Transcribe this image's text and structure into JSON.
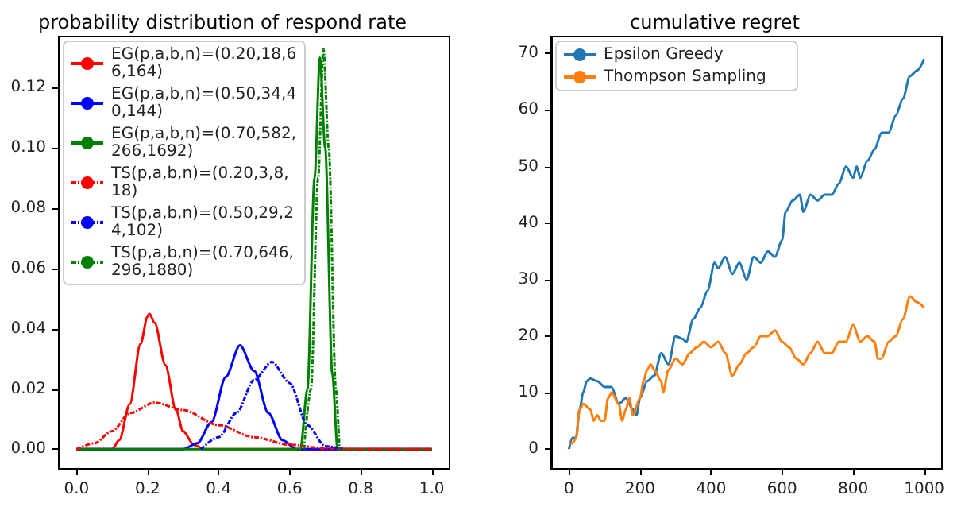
{
  "chart_data": [
    {
      "type": "line",
      "title": "probability distribution of respond rate",
      "legend": "top left",
      "grid": false,
      "marker": "none",
      "xlim": [
        -0.05,
        1.05
      ],
      "ylim": [
        -0.0065,
        0.137
      ],
      "xticks": [
        {
          "value": 0,
          "label": "0.0"
        },
        {
          "value": 0.2,
          "label": "0.2"
        },
        {
          "value": 0.4,
          "label": "0.4"
        },
        {
          "value": 0.6,
          "label": "0.6"
        },
        {
          "value": 0.8,
          "label": "0.8"
        },
        {
          "value": 1,
          "label": "1.0"
        }
      ],
      "yticks": [
        {
          "value": 0,
          "label": "0.00"
        },
        {
          "value": 0.02,
          "label": "0.02"
        },
        {
          "value": 0.04,
          "label": "0.04"
        },
        {
          "value": 0.06,
          "label": "0.06"
        },
        {
          "value": 0.08,
          "label": "0.08"
        },
        {
          "value": 0.1,
          "label": "0.10"
        },
        {
          "value": 0.12,
          "label": "0.12"
        }
      ],
      "series": [
        {
          "name": "EG(p,a,b,n)=(0.20,18,66,164)",
          "color": "#ff0000",
          "line_style": "solid",
          "x": [
            0,
            0.1,
            0.12,
            0.15,
            0.18,
            0.2,
            0.205,
            0.22,
            0.25,
            0.28,
            0.3,
            0.33,
            0.36,
            0.6,
            1
          ],
          "values": [
            0,
            0,
            0.003,
            0.015,
            0.035,
            0.044,
            0.045,
            0.042,
            0.028,
            0.013,
            0.006,
            0.0015,
            0,
            0,
            0
          ]
        },
        {
          "name": "EG(p,a,b,n)=(0.50,34,40,144)",
          "color": "#0000ff",
          "line_style": "solid",
          "x": [
            0,
            0.3,
            0.34,
            0.38,
            0.42,
            0.46,
            0.5,
            0.54,
            0.58,
            0.62,
            1
          ],
          "values": [
            0,
            0,
            0.002,
            0.009,
            0.024,
            0.0345,
            0.026,
            0.012,
            0.003,
            0,
            0
          ]
        },
        {
          "name": "EG(p,a,b,n)=(0.70,582,266,1692)",
          "color": "#008000",
          "line_style": "solid",
          "x": [
            0,
            0.63,
            0.65,
            0.67,
            0.685,
            0.7,
            0.72,
            0.735,
            1
          ],
          "values": [
            0,
            0,
            0.02,
            0.09,
            0.13,
            0.1,
            0.025,
            0,
            0
          ]
        },
        {
          "name": "TS(p,a,b,n)=(0.20,3,8,18)",
          "color": "#ff0000",
          "line_style": "dashdot",
          "x": [
            0,
            0.05,
            0.1,
            0.15,
            0.22,
            0.3,
            0.4,
            0.5,
            0.6,
            0.7,
            0.8,
            1
          ],
          "values": [
            0,
            0.002,
            0.006,
            0.012,
            0.0155,
            0.013,
            0.008,
            0.004,
            0.0015,
            0.0003,
            0,
            0
          ]
        },
        {
          "name": "TS(p,a,b,n)=(0.50,29,24,102)",
          "color": "#0000ff",
          "line_style": "dashdot",
          "x": [
            0.35,
            0.4,
            0.45,
            0.5,
            0.55,
            0.6,
            0.65,
            0.7,
            0.75
          ],
          "values": [
            0,
            0.004,
            0.012,
            0.023,
            0.029,
            0.022,
            0.008,
            0.001,
            0
          ]
        },
        {
          "name": "TS(p,a,b,n)=(0.70,646,296,1880)",
          "color": "#008000",
          "line_style": "dashdot",
          "x": [
            0.64,
            0.66,
            0.68,
            0.695,
            0.71,
            0.73,
            0.74
          ],
          "values": [
            0,
            0.02,
            0.09,
            0.133,
            0.1,
            0.02,
            0
          ]
        }
      ]
    },
    {
      "type": "line",
      "title": "cumulative regret",
      "legend": "top left",
      "grid": false,
      "marker": "none",
      "xlim": [
        -50,
        1050
      ],
      "ylim": [
        -3.5,
        73
      ],
      "xticks": [
        0,
        200,
        400,
        600,
        800,
        1000
      ],
      "yticks": [
        0,
        10,
        20,
        30,
        40,
        50,
        60,
        70
      ],
      "series": [
        {
          "name": "Epsilon Greedy",
          "color": "#1f77b4",
          "line_style": "solid",
          "x": [
            0,
            10,
            20,
            30,
            40,
            50,
            60,
            80,
            100,
            120,
            140,
            160,
            180,
            190,
            200,
            220,
            240,
            260,
            280,
            300,
            320,
            330,
            350,
            370,
            390,
            410,
            420,
            440,
            460,
            480,
            500,
            520,
            540,
            560,
            580,
            600,
            610,
            630,
            650,
            660,
            680,
            700,
            720,
            740,
            760,
            780,
            800,
            810,
            820,
            840,
            860,
            880,
            900,
            920,
            940,
            960,
            980,
            1000
          ],
          "values": [
            0,
            2,
            2,
            7,
            10,
            12,
            12.5,
            12,
            11,
            11,
            8,
            9,
            7,
            6,
            9,
            12,
            13,
            17,
            15,
            20,
            19.5,
            19,
            23,
            25,
            28,
            33,
            32,
            34,
            31,
            33,
            30,
            34,
            33,
            35,
            34,
            37,
            42,
            44,
            45,
            42,
            45,
            44,
            45,
            45,
            47,
            50,
            48,
            50,
            48,
            51,
            53,
            56,
            56,
            59,
            62,
            66,
            67,
            69
          ]
        },
        {
          "name": "Thompson Sampling",
          "color": "#ff7f0e",
          "line_style": "solid",
          "x": [
            0,
            10,
            20,
            30,
            40,
            60,
            70,
            80,
            90,
            100,
            110,
            120,
            140,
            150,
            160,
            170,
            180,
            200,
            210,
            220,
            230,
            240,
            260,
            265,
            280,
            300,
            320,
            340,
            360,
            380,
            400,
            420,
            440,
            460,
            480,
            500,
            520,
            540,
            560,
            580,
            600,
            620,
            640,
            660,
            680,
            700,
            720,
            740,
            760,
            780,
            800,
            820,
            840,
            860,
            870,
            880,
            900,
            920,
            940,
            960,
            980,
            1000
          ],
          "values": [
            1,
            1,
            2,
            7,
            8,
            7,
            5,
            6,
            5,
            5,
            9,
            10,
            8,
            5,
            7,
            9,
            6,
            9,
            12,
            14,
            15,
            14,
            12,
            10,
            14,
            16,
            15,
            17,
            18,
            19,
            18,
            19,
            17,
            13,
            15,
            17,
            18,
            20,
            20,
            21,
            19,
            18,
            16,
            15,
            17,
            19,
            17,
            17,
            19,
            19,
            22,
            19,
            20,
            19,
            16,
            16,
            19,
            20,
            23,
            27,
            26,
            25
          ]
        }
      ]
    }
  ]
}
